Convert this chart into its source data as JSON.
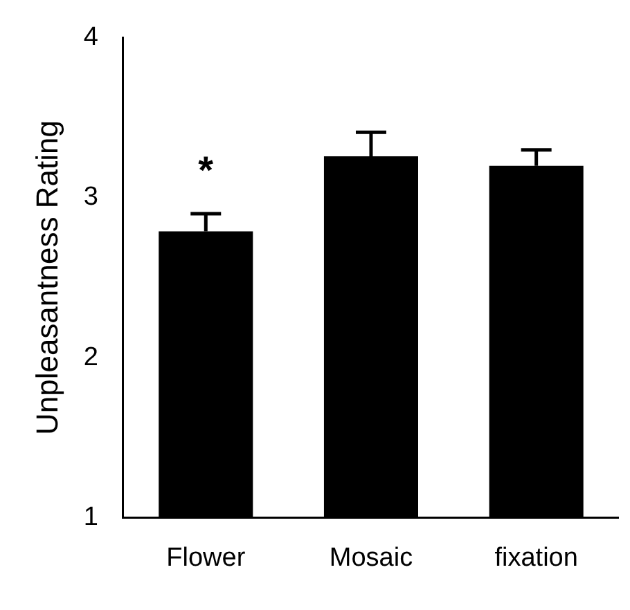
{
  "chart_data": {
    "type": "bar",
    "ylabel": "Unpleasantness Rating",
    "categories": [
      "Flower",
      "Mosaic",
      "fixation"
    ],
    "values": [
      2.79,
      3.26,
      3.2
    ],
    "color": "#000000",
    "errors": [
      [
        2.79,
        2.9
      ],
      [
        3.26,
        3.41
      ],
      [
        3.2,
        3.3
      ]
    ],
    "ylim": [
      1,
      4
    ],
    "yticks": [
      1,
      2,
      3,
      4
    ],
    "grid": false,
    "annotations": [
      "*"
    ]
  }
}
